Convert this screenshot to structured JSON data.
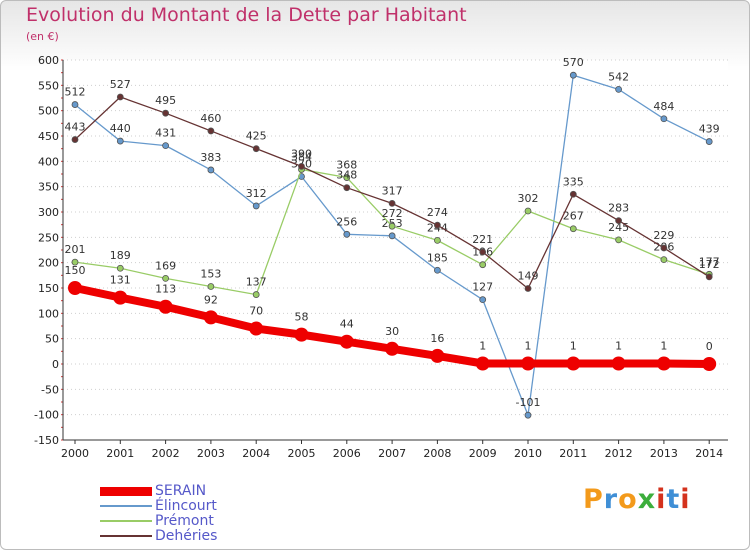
{
  "header": {
    "title": "Evolution du Montant de la Dette par Habitant",
    "subtitle": "(en €)"
  },
  "logo": {
    "text": "Proxiti",
    "colors": [
      "#f39a1b",
      "#3f8fd6",
      "#3cae3c",
      "#d4321d"
    ]
  },
  "chart_data": {
    "type": "line",
    "title": "Evolution du Montant de la Dette par Habitant",
    "subtitle": "(en €)",
    "xlabel": "",
    "ylabel": "",
    "x": [
      "2000",
      "2001",
      "2002",
      "2003",
      "2004",
      "2005",
      "2006",
      "2007",
      "2008",
      "2009",
      "2010",
      "2011",
      "2012",
      "2013",
      "2014"
    ],
    "ylim": [
      -150,
      600
    ],
    "yticks": [
      600,
      550,
      500,
      450,
      400,
      350,
      300,
      250,
      200,
      150,
      100,
      50,
      0,
      -50,
      -100,
      -150
    ],
    "grid": "horizontal dotted",
    "legend": "bottom-left",
    "series": [
      {
        "name": "SERAIN",
        "color": "#ee0000",
        "values": [
          150,
          131,
          113,
          92,
          70,
          58,
          44,
          30,
          16,
          1,
          1,
          1,
          1,
          1,
          0
        ]
      },
      {
        "name": "Élincourt",
        "color": "#6699cc",
        "values": [
          512,
          440,
          431,
          383,
          312,
          370,
          256,
          253,
          185,
          127,
          -101,
          570,
          542,
          484,
          439
        ]
      },
      {
        "name": "Prémont",
        "color": "#99cc66",
        "values": [
          201,
          189,
          169,
          153,
          137,
          384,
          368,
          272,
          244,
          196,
          302,
          267,
          245,
          206,
          177
        ]
      },
      {
        "name": "Dehéries",
        "color": "#663333",
        "values": [
          443,
          527,
          495,
          460,
          425,
          390,
          348,
          317,
          274,
          221,
          149,
          335,
          283,
          229,
          172
        ]
      }
    ]
  }
}
